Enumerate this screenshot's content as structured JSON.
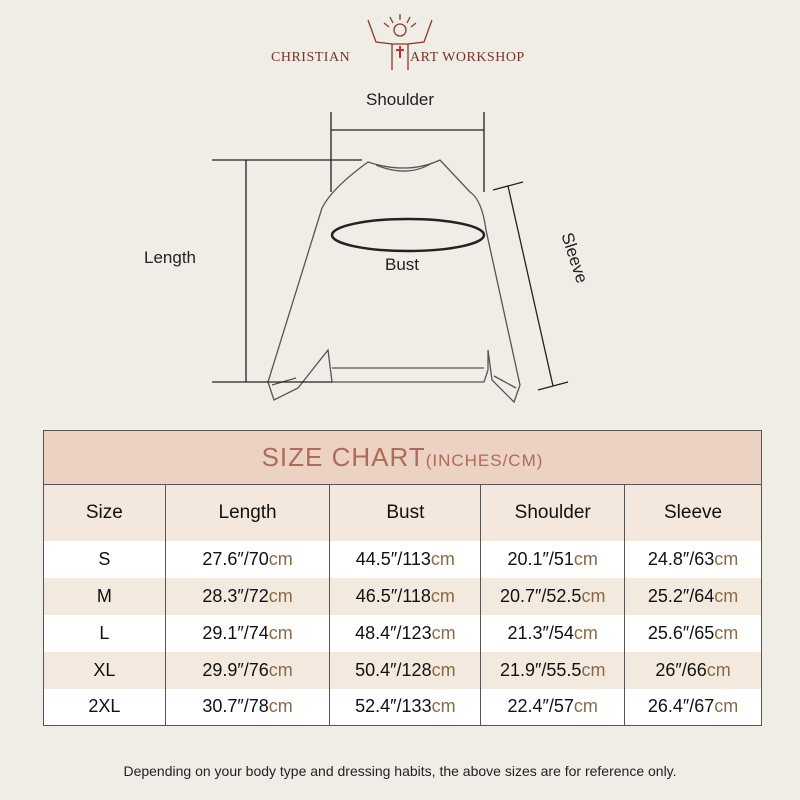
{
  "brand": {
    "left": "CHRISTIAN",
    "right": "ART WORKSHOP"
  },
  "diagram": {
    "shoulder": "Shoulder",
    "length": "Length",
    "bust": "Bust",
    "sleeve": "Sleeve"
  },
  "table": {
    "title": "SIZE CHART",
    "title_unit": "(INCHES/CM)",
    "headers": [
      "Size",
      "Length",
      "Bust",
      "Shoulder",
      "Sleeve"
    ],
    "units": {
      "inch": "″",
      "sep": "/",
      "cm": "cm"
    },
    "rows": [
      {
        "size": "S",
        "cells": [
          [
            "27.6",
            "70"
          ],
          [
            "44.5",
            "113"
          ],
          [
            "20.1",
            "51"
          ],
          [
            "24.8",
            "63"
          ]
        ]
      },
      {
        "size": "M",
        "cells": [
          [
            "28.3",
            "72"
          ],
          [
            "46.5",
            "118"
          ],
          [
            "20.7",
            "52.5"
          ],
          [
            "25.2",
            "64"
          ]
        ]
      },
      {
        "size": "L",
        "cells": [
          [
            "29.1",
            "74"
          ],
          [
            "48.4",
            "123"
          ],
          [
            "21.3",
            "54"
          ],
          [
            "25.6",
            "65"
          ]
        ]
      },
      {
        "size": "XL",
        "cells": [
          [
            "29.9",
            "76"
          ],
          [
            "50.4",
            "128"
          ],
          [
            "21.9",
            "55.5"
          ],
          [
            "26",
            "66"
          ]
        ]
      },
      {
        "size": "2XL",
        "cells": [
          [
            "30.7",
            "78"
          ],
          [
            "52.4",
            "133"
          ],
          [
            "22.4",
            "57"
          ],
          [
            "26.4",
            "67"
          ]
        ]
      }
    ]
  },
  "note": "Depending on your body type and dressing habits, the above sizes are for reference only."
}
